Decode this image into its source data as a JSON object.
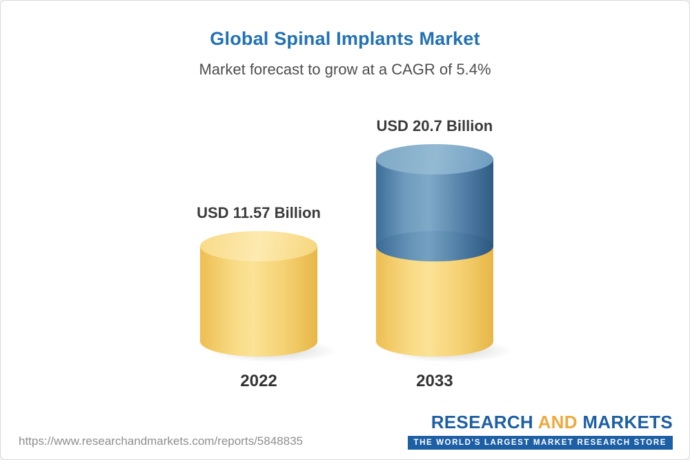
{
  "chart_data": {
    "type": "bar",
    "title": "Global Spinal Implants Market",
    "subtitle": "Market forecast to grow at a CAGR of 5.4%",
    "unit": "USD Billion",
    "categories": [
      "2022",
      "2033"
    ],
    "values": [
      11.57,
      20.7
    ],
    "bars": [
      {
        "category": "2022",
        "value": 11.57,
        "label": "USD 11.57 Billion",
        "color": "#f6cf6b"
      },
      {
        "category": "2033",
        "value": 20.7,
        "label": "USD 20.7 Billion",
        "base_value": 11.57,
        "growth_value": 9.13,
        "base_color": "#f6cf6b",
        "growth_color": "#4779a3"
      }
    ],
    "layout": {
      "grid": false,
      "legend": false,
      "axes": false,
      "bar_style": "3d-cylinder"
    },
    "colors": {
      "title": "#2171b5",
      "base_segment": "#f6cf6b",
      "growth_segment": "#4779a3"
    }
  },
  "footer": {
    "url": "https://www.researchandmarkets.com/reports/5848835",
    "logo": {
      "part1": "RESEARCH",
      "part2": "AND",
      "part3": "MARKETS",
      "tagline": "THE WORLD'S LARGEST MARKET RESEARCH STORE"
    }
  }
}
